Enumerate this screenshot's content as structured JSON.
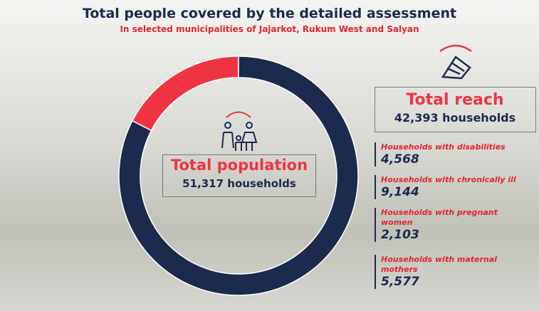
{
  "header": {
    "title": "Total people covered by the detailed assessment",
    "subtitle": "In selected municipalities of Jajarkot, Rukum West and Salyan"
  },
  "donut": {
    "values": [
      42393,
      8924
    ],
    "colors": [
      "#1c2a4e",
      "#ee3442"
    ]
  },
  "population": {
    "label": "Total population",
    "value": "51,317 households"
  },
  "reach": {
    "label": "Total reach",
    "value": "42,393 households"
  },
  "groups": [
    {
      "label": "Households with disabilities",
      "value": "4,568"
    },
    {
      "label": "Households with chronically ill",
      "value": "9,144"
    },
    {
      "label": "Households with pregnant women",
      "value": "2,103"
    },
    {
      "label": "Households with maternal mothers",
      "value": "5,577"
    }
  ]
}
